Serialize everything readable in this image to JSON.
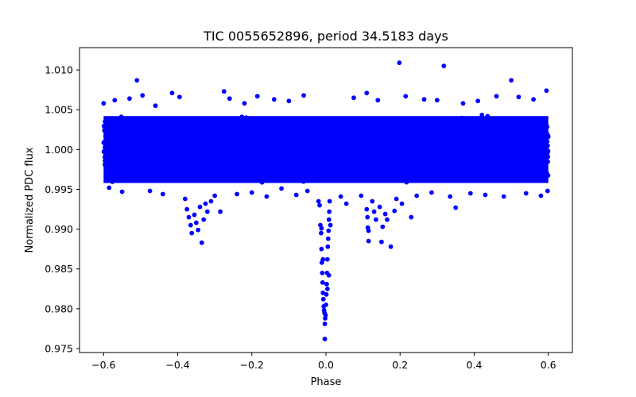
{
  "chart_data": {
    "type": "scatter",
    "title": "TIC 0055652896, period 34.5183 days",
    "xlabel": "Phase",
    "ylabel": "Normalized PDC flux",
    "xlim": [
      -0.665,
      0.665
    ],
    "ylim": [
      0.9745,
      1.0128
    ],
    "xticks": [
      -0.6,
      -0.4,
      -0.2,
      0.0,
      0.2,
      0.4,
      0.6
    ],
    "xtick_labels": [
      "−0.6",
      "−0.4",
      "−0.2",
      "0.0",
      "0.2",
      "0.4",
      "0.6"
    ],
    "yticks": [
      0.975,
      0.98,
      0.985,
      0.99,
      0.995,
      1.0,
      1.005,
      1.01
    ],
    "ytick_labels": [
      "0.975",
      "0.980",
      "0.985",
      "0.990",
      "0.995",
      "1.000",
      "1.005",
      "1.010"
    ],
    "grid": false,
    "marker_color": "#0000ff",
    "series": [
      {
        "band": {
          "x_range": [
            -0.6,
            0.6
          ],
          "y_range": [
            0.9955,
            1.0046
          ],
          "count": 4200
        },
        "points": [
          [
            -0.6,
            1.0058
          ],
          [
            -0.585,
            0.9952
          ],
          [
            -0.57,
            1.0062
          ],
          [
            -0.55,
            0.9947
          ],
          [
            -0.53,
            1.0064
          ],
          [
            -0.51,
            1.0087
          ],
          [
            -0.495,
            1.0068
          ],
          [
            -0.475,
            0.9948
          ],
          [
            -0.46,
            1.0055
          ],
          [
            -0.44,
            0.9944
          ],
          [
            -0.415,
            1.0071
          ],
          [
            -0.395,
            1.0066
          ],
          [
            -0.38,
            0.9938
          ],
          [
            -0.375,
            0.9925
          ],
          [
            -0.37,
            0.9915
          ],
          [
            -0.365,
            0.9905
          ],
          [
            -0.362,
            0.9895
          ],
          [
            -0.355,
            0.9918
          ],
          [
            -0.35,
            0.9908
          ],
          [
            -0.345,
            0.9899
          ],
          [
            -0.34,
            0.9928
          ],
          [
            -0.335,
            0.9883
          ],
          [
            -0.33,
            0.9912
          ],
          [
            -0.325,
            0.9932
          ],
          [
            -0.32,
            0.9922
          ],
          [
            -0.31,
            0.9935
          ],
          [
            -0.3,
            0.9942
          ],
          [
            -0.285,
            0.9922
          ],
          [
            -0.275,
            1.0073
          ],
          [
            -0.26,
            1.0064
          ],
          [
            -0.24,
            0.9944
          ],
          [
            -0.22,
            1.0058
          ],
          [
            -0.2,
            0.9946
          ],
          [
            -0.185,
            1.0067
          ],
          [
            -0.16,
            0.9941
          ],
          [
            -0.14,
            1.0063
          ],
          [
            -0.12,
            0.9951
          ],
          [
            -0.1,
            1.0061
          ],
          [
            -0.08,
            0.9943
          ],
          [
            -0.06,
            1.0068
          ],
          [
            -0.05,
            0.9948
          ],
          [
            -0.02,
            0.9935
          ],
          [
            -0.017,
            0.993
          ],
          [
            -0.015,
            0.9905
          ],
          [
            -0.013,
            0.9895
          ],
          [
            -0.012,
            0.9875
          ],
          [
            -0.011,
            0.9858
          ],
          [
            -0.01,
            0.9845
          ],
          [
            -0.009,
            0.9833
          ],
          [
            -0.008,
            0.982
          ],
          [
            -0.007,
            0.9812
          ],
          [
            -0.006,
            0.9803
          ],
          [
            -0.005,
            0.9798
          ],
          [
            -0.004,
            0.9795
          ],
          [
            -0.003,
            0.9781
          ],
          [
            -0.002,
            0.9788
          ],
          [
            -0.001,
            0.9792
          ],
          [
            0.0,
            0.9805
          ],
          [
            0.001,
            0.9818
          ],
          [
            0.002,
            0.9831
          ],
          [
            0.003,
            0.9845
          ],
          [
            0.004,
            0.9862
          ],
          [
            0.005,
            0.9878
          ],
          [
            0.006,
            0.9888
          ],
          [
            0.007,
            0.9898
          ],
          [
            0.008,
            0.9912
          ],
          [
            0.009,
            0.9922
          ],
          [
            0.01,
            0.9935
          ],
          [
            -0.003,
            0.9762
          ],
          [
            0.004,
            0.9825
          ],
          [
            -0.008,
            0.9862
          ],
          [
            0.008,
            0.9842
          ],
          [
            -0.012,
            0.9901
          ],
          [
            0.012,
            0.9905
          ],
          [
            0.04,
            0.9941
          ],
          [
            0.055,
            0.9932
          ],
          [
            0.075,
            1.0065
          ],
          [
            0.095,
            0.9942
          ],
          [
            0.11,
            1.0071
          ],
          [
            0.11,
            0.9925
          ],
          [
            0.112,
            0.9915
          ],
          [
            0.113,
            0.9902
          ],
          [
            0.115,
            0.9898
          ],
          [
            0.115,
            0.9885
          ],
          [
            0.125,
            0.9935
          ],
          [
            0.13,
            0.9922
          ],
          [
            0.135,
            0.9912
          ],
          [
            0.14,
            1.0062
          ],
          [
            0.145,
            0.9928
          ],
          [
            0.15,
            0.9884
          ],
          [
            0.153,
            0.9903
          ],
          [
            0.16,
            0.9919
          ],
          [
            0.165,
            0.9912
          ],
          [
            0.175,
            0.9878
          ],
          [
            0.185,
            0.9923
          ],
          [
            0.19,
            0.9938
          ],
          [
            0.198,
            1.0109
          ],
          [
            0.205,
            0.9932
          ],
          [
            0.215,
            1.0067
          ],
          [
            0.23,
            0.9915
          ],
          [
            0.245,
            0.9942
          ],
          [
            0.265,
            1.0063
          ],
          [
            0.285,
            0.9946
          ],
          [
            0.3,
            1.0062
          ],
          [
            0.318,
            1.0105
          ],
          [
            0.335,
            0.9941
          ],
          [
            0.35,
            0.9927
          ],
          [
            0.37,
            1.0058
          ],
          [
            0.39,
            0.9945
          ],
          [
            0.41,
            1.0061
          ],
          [
            0.43,
            0.9943
          ],
          [
            0.46,
            1.0067
          ],
          [
            0.48,
            0.9941
          ],
          [
            0.5,
            1.0087
          ],
          [
            0.52,
            1.0066
          ],
          [
            0.54,
            0.9945
          ],
          [
            0.56,
            1.0063
          ],
          [
            0.58,
            0.9942
          ],
          [
            0.595,
            1.0074
          ],
          [
            0.598,
            0.9948
          ]
        ]
      }
    ]
  }
}
